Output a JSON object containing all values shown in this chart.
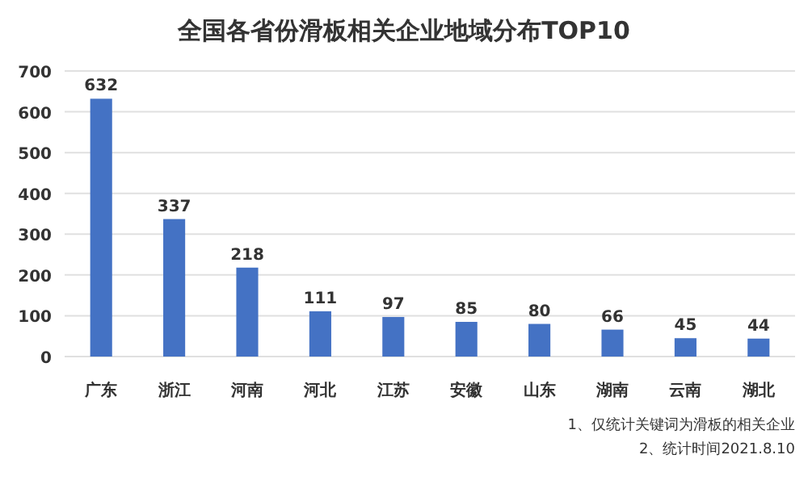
{
  "chart_data": {
    "type": "bar",
    "title": "全国各省份滑板相关企业地域分布TOP10",
    "categories": [
      "广东",
      "浙江",
      "河南",
      "河北",
      "江苏",
      "安徽",
      "山东",
      "湖南",
      "云南",
      "湖北"
    ],
    "values": [
      632,
      337,
      218,
      111,
      97,
      85,
      80,
      66,
      45,
      44
    ],
    "color": "#4472c4",
    "ylim": [
      0,
      700
    ],
    "yticks": [
      0,
      100,
      200,
      300,
      400,
      500,
      600,
      700
    ],
    "grid": "y",
    "data_labels": true,
    "annotations": [
      "1、仅统计关键词为滑板的相关企业",
      "2、统计时间2021.8.10"
    ]
  }
}
